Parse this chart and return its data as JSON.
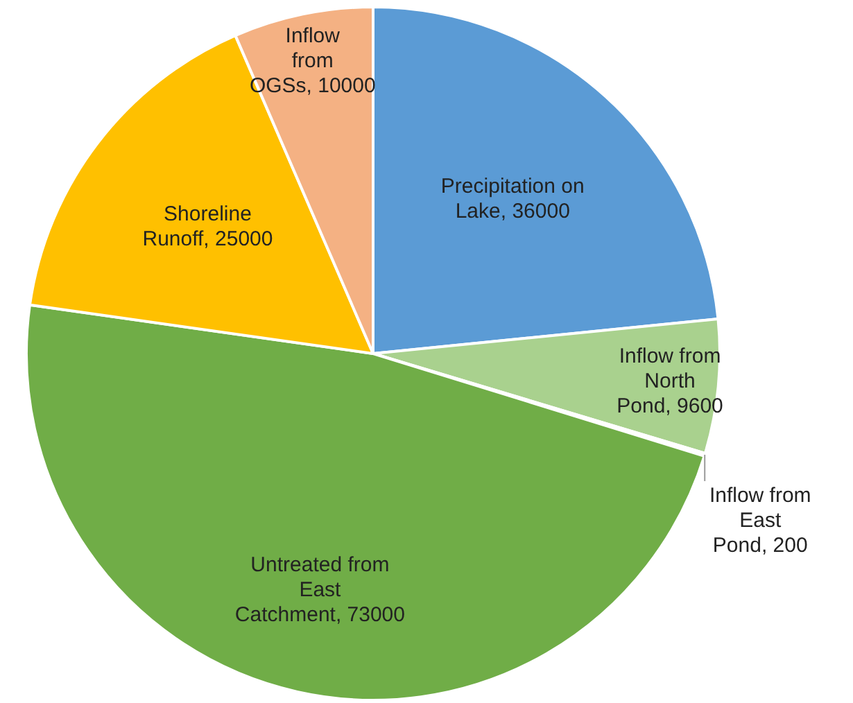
{
  "chart_data": {
    "type": "pie",
    "categories": [
      "Precipitation on Lake",
      "Inflow from North Pond",
      "Inflow from East Pond",
      "Untreated from East Catchment",
      "Shoreline Runoff",
      "Inflow from OGSs"
    ],
    "values": [
      36000,
      9600,
      200,
      73000,
      25000,
      10000
    ],
    "value_labels": [
      ", 36000",
      ", 9600",
      ", 200",
      ", 73000",
      ", 25000",
      ", 10000"
    ],
    "colors": [
      "#5b9bd5",
      "#a9d18e",
      "#c5e0b4",
      "#70ad47",
      "#ffc000",
      "#f4b183"
    ],
    "legend": false
  }
}
